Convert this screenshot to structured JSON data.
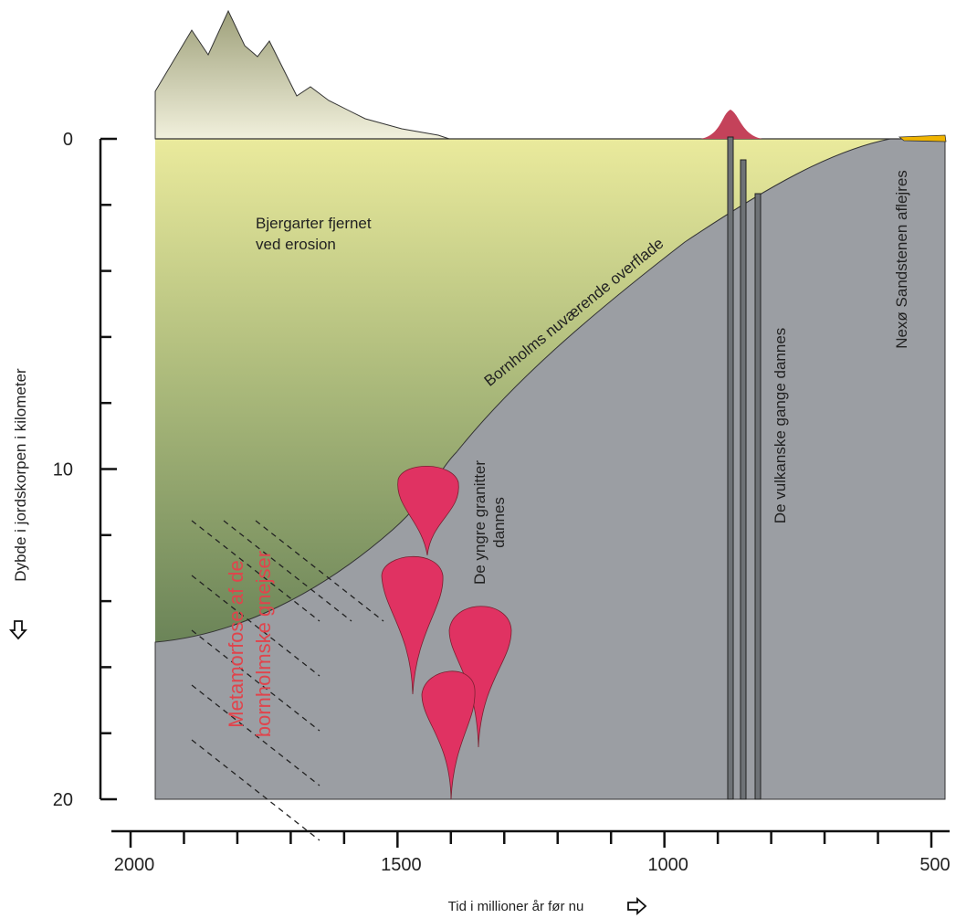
{
  "y_axis": {
    "title": "Dybde i jordskorpen i kilometer",
    "lim": [
      0,
      20
    ],
    "ticks": [
      0,
      10,
      20
    ],
    "minor_ticks": [
      2,
      4,
      6,
      8,
      12,
      14,
      16,
      18
    ]
  },
  "x_axis": {
    "title": "Tid i millioner år før nu",
    "lim": [
      2000,
      500
    ],
    "ticks": [
      2000,
      1500,
      1000,
      500
    ],
    "minor_ticks": [
      1900,
      1800,
      1700,
      1600,
      1400,
      1300,
      1200,
      1100,
      900,
      800,
      700,
      600
    ]
  },
  "annotations": {
    "erosion": [
      "Bjergarter fjernet",
      "ved erosion"
    ],
    "surface": "Bornholms nuværende overflade",
    "granites": [
      "De yngre granitter",
      "dannes"
    ],
    "dikes": "De vulkanske gange dannes",
    "sandstone": "Nexø Sandstenen aflejres",
    "metamorphism": [
      "Metamorfose af de",
      "bornholmske gnejser"
    ]
  }
}
